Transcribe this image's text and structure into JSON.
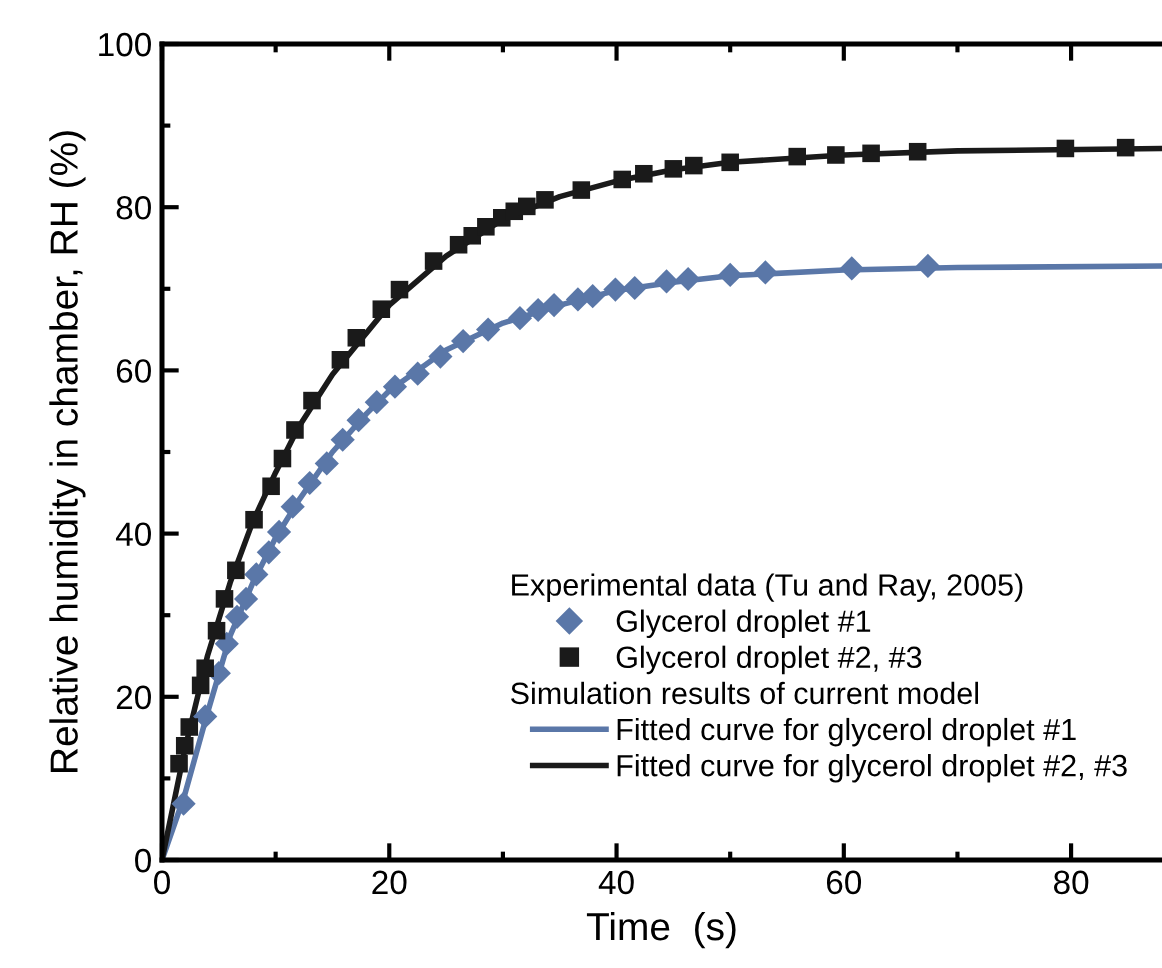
{
  "chart_data": {
    "type": "scatter",
    "xlabel": "Time  (s)",
    "ylabel": "Relative humidity in chamber, RH (%)",
    "annotations": [
      "Experimental data (Tu and Ray, 2005)",
      "Simulation results of current model"
    ],
    "xlim": [
      0,
      88
    ],
    "ylim": [
      0,
      100
    ],
    "xticks": [
      0,
      {
        "value": 10,
        "label": null
      },
      20,
      {
        "value": 30,
        "label": null
      },
      40,
      {
        "value": 50,
        "label": null
      },
      60,
      {
        "value": 70,
        "label": null
      },
      80
    ],
    "yticks": [
      0,
      {
        "value": 10,
        "label": null
      },
      20,
      {
        "value": 30,
        "label": null
      },
      40,
      {
        "value": 50,
        "label": null
      },
      60,
      {
        "value": 70,
        "label": null
      },
      80,
      {
        "value": 90,
        "label": null
      },
      100
    ],
    "grid": false,
    "legend": "bottom right",
    "series": [
      {
        "name": "Glycerol droplet #1",
        "marker": "diamond",
        "color": "#5a77a8",
        "x": [
          1.9,
          3.8,
          5.0,
          5.7,
          6.6,
          7.4,
          8.3,
          9.4,
          10.3,
          11.5,
          13.0,
          14.5,
          15.9,
          17.3,
          18.9,
          20.5,
          22.5,
          24.5,
          26.5,
          28.7,
          31.5,
          33.1,
          34.5,
          36.6,
          37.9,
          39.9,
          41.6,
          44.4,
          46.3,
          50.0,
          53.1,
          60.7,
          67.4
        ],
        "values": [
          6.9,
          17.6,
          22.9,
          26.5,
          29.8,
          32.0,
          35.0,
          37.7,
          40.2,
          43.3,
          46.2,
          48.6,
          51.5,
          53.9,
          56.1,
          58.0,
          59.6,
          61.7,
          63.6,
          65.0,
          66.4,
          67.4,
          68.0,
          68.7,
          69.1,
          69.9,
          70.1,
          70.9,
          71.2,
          71.7,
          72.0,
          72.5,
          72.8
        ]
      },
      {
        "name": "Glycerol droplet #2, #3",
        "marker": "square",
        "color": "#1a1a1a",
        "x": [
          1.5,
          2.0,
          2.4,
          3.4,
          3.8,
          4.8,
          5.5,
          6.5,
          8.1,
          9.6,
          10.6,
          11.7,
          13.2,
          15.7,
          17.1,
          19.3,
          20.9,
          23.9,
          26.1,
          27.3,
          28.5,
          29.9,
          31.0,
          32.1,
          33.7,
          36.9,
          40.5,
          42.4,
          45.0,
          46.8,
          50.0,
          55.9,
          59.3,
          62.4,
          66.5,
          79.5,
          84.8
        ],
        "values": [
          11.8,
          14.0,
          16.3,
          21.4,
          23.5,
          28.1,
          32.0,
          35.5,
          41.7,
          45.8,
          49.2,
          52.7,
          56.3,
          61.3,
          64.0,
          67.5,
          69.9,
          73.4,
          75.4,
          76.5,
          77.6,
          78.7,
          79.5,
          80.1,
          80.9,
          82.1,
          83.4,
          84.1,
          84.7,
          85.1,
          85.5,
          86.2,
          86.4,
          86.6,
          86.8,
          87.2,
          87.3
        ]
      },
      {
        "name": "Fitted curve for glycerol droplet #1",
        "type": "line",
        "line_style": "solid",
        "color": "#5a77a8",
        "x": [
          0,
          2,
          4,
          6,
          8,
          10,
          12,
          15,
          18,
          20,
          25,
          30,
          35,
          40,
          45,
          50,
          60,
          70,
          88
        ],
        "values": [
          0,
          8,
          18,
          27.5,
          34,
          39.5,
          44,
          50,
          54.7,
          57.5,
          62.5,
          65.8,
          68,
          69.8,
          70.8,
          71.6,
          72.3,
          72.6,
          72.8
        ]
      },
      {
        "name": "Fitted curve for glycerol droplet #2, #3",
        "type": "line",
        "line_style": "solid",
        "color": "#1a1a1a",
        "x": [
          0,
          2,
          4,
          6,
          8,
          10,
          12,
          15,
          20,
          25,
          30,
          35,
          40,
          45,
          50,
          60,
          70,
          88
        ],
        "values": [
          0,
          13.5,
          25,
          34,
          41.5,
          47.5,
          53,
          59.5,
          68,
          74,
          78.5,
          81.3,
          83.2,
          84.6,
          85.5,
          86.4,
          86.9,
          87.2
        ]
      }
    ]
  }
}
